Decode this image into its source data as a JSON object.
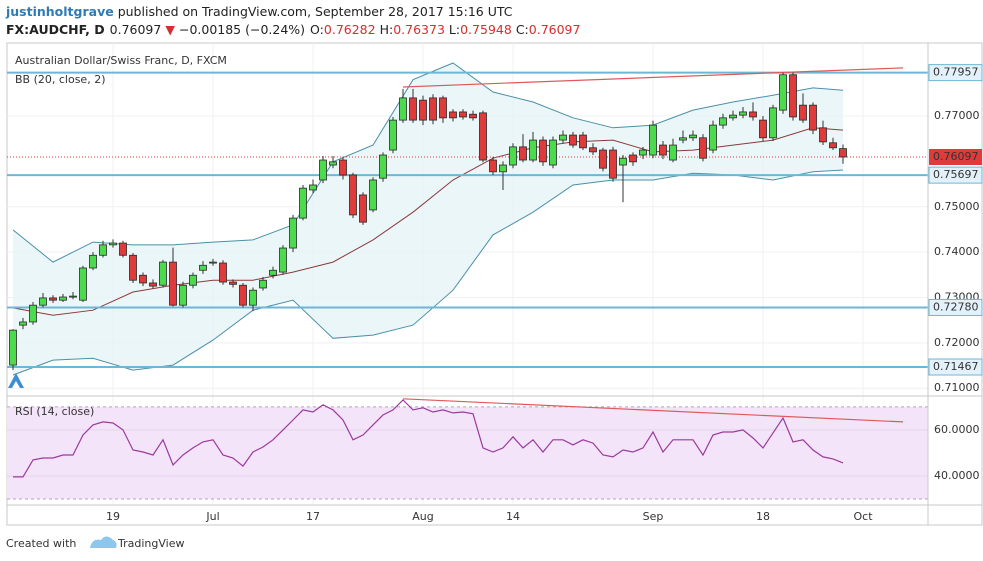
{
  "header": {
    "author": "justinholtgrave",
    "published": "published on TradingView.com, September 28, 2017 15:16 UTC",
    "symbol": "FX:AUDCHF, D",
    "last": "0.76097",
    "arrow": "▼",
    "change": "−0.00185 (−0.24%)",
    "ohlc": [
      {
        "key": "O:",
        "value": "0.76282"
      },
      {
        "key": "H:",
        "value": "0.76373"
      },
      {
        "key": "L:",
        "value": "0.75948"
      },
      {
        "key": "C:",
        "value": "0.76097"
      }
    ]
  },
  "footer": {
    "created": "Created with",
    "brand": "TradingView"
  },
  "chart_data": [
    {
      "type": "candlestick",
      "title": "Australian Dollar/Swiss Franc, D, FXCM",
      "up_color": "#4cdb4c",
      "down_color": "#e03b3b",
      "wick_color": "#333333",
      "xlim": [
        -0.6,
        91.5
      ],
      "xticks": [
        {
          "value": 10,
          "label": "19"
        },
        {
          "value": 20,
          "label": "Jul"
        },
        {
          "value": 30,
          "label": "17"
        },
        {
          "value": 41,
          "label": "Aug"
        },
        {
          "value": 50,
          "label": "14"
        },
        {
          "value": 64,
          "label": "Sep"
        },
        {
          "value": 75,
          "label": "18"
        },
        {
          "value": 85,
          "label": "Oct"
        }
      ],
      "ylim": [
        0.7085,
        0.7861
      ],
      "yticks": [
        {
          "value": 0.71,
          "label": "0.71000"
        },
        {
          "value": 0.72,
          "label": "0.72000"
        },
        {
          "value": 0.73,
          "label": "0.73000"
        },
        {
          "value": 0.74,
          "label": "0.74000"
        },
        {
          "value": 0.75,
          "label": "0.75000"
        },
        {
          "value": 0.77,
          "label": "0.77000"
        }
      ],
      "grid": true,
      "open": [
        0.7151,
        0.7239,
        0.7246,
        0.7283,
        0.7299,
        0.7294,
        0.7301,
        0.7294,
        0.7365,
        0.7393,
        0.7416,
        0.742,
        0.7393,
        0.7349,
        0.7332,
        0.7327,
        0.7378,
        0.7283,
        0.7327,
        0.736,
        0.7376,
        0.7376,
        0.7334,
        0.7327,
        0.7283,
        0.7321,
        0.7349,
        0.7356,
        0.7409,
        0.7475,
        0.7537,
        0.7559,
        0.7592,
        0.7603,
        0.757,
        0.7526,
        0.7493,
        0.7563,
        0.7625,
        0.7691,
        0.774,
        0.7735,
        0.774,
        0.774,
        0.7709,
        0.7709,
        0.7704,
        0.7707,
        0.7603,
        0.7577,
        0.7592,
        0.7632,
        0.7603,
        0.7647,
        0.7592,
        0.7647,
        0.7658,
        0.7658,
        0.763,
        0.7625,
        0.7625,
        0.7592,
        0.7614,
        0.7614,
        0.7614,
        0.7636,
        0.7603,
        0.7647,
        0.7652,
        0.7652,
        0.7625,
        0.768,
        0.7696,
        0.7702,
        0.7709,
        0.7691,
        0.7652,
        0.7713,
        0.7791,
        0.7724,
        0.7724,
        0.7674,
        0.7641,
        0.76282
      ],
      "high": [
        0.723,
        0.7255,
        0.729,
        0.731,
        0.7305,
        0.7308,
        0.7312,
        0.737,
        0.74,
        0.7425,
        0.7428,
        0.7425,
        0.7398,
        0.7355,
        0.734,
        0.7383,
        0.741,
        0.7335,
        0.7355,
        0.738,
        0.7385,
        0.7382,
        0.734,
        0.7332,
        0.7322,
        0.7345,
        0.7368,
        0.7415,
        0.7482,
        0.7548,
        0.756,
        0.7612,
        0.7612,
        0.761,
        0.7575,
        0.7532,
        0.7565,
        0.762,
        0.7698,
        0.776,
        0.776,
        0.7745,
        0.7748,
        0.7745,
        0.7715,
        0.7715,
        0.7712,
        0.7712,
        0.761,
        0.76,
        0.764,
        0.766,
        0.7665,
        0.7655,
        0.7655,
        0.7668,
        0.7665,
        0.7665,
        0.764,
        0.763,
        0.7632,
        0.7614,
        0.762,
        0.7632,
        0.769,
        0.7645,
        0.765,
        0.7668,
        0.7668,
        0.766,
        0.769,
        0.7705,
        0.7712,
        0.772,
        0.773,
        0.77,
        0.7725,
        0.7796,
        0.7796,
        0.775,
        0.773,
        0.769,
        0.7652,
        0.76373
      ],
      "low": [
        0.714,
        0.723,
        0.724,
        0.7278,
        0.7288,
        0.729,
        0.7296,
        0.729,
        0.736,
        0.7388,
        0.741,
        0.7388,
        0.7332,
        0.7325,
        0.732,
        0.7322,
        0.728,
        0.7278,
        0.732,
        0.7352,
        0.737,
        0.7328,
        0.7322,
        0.7278,
        0.727,
        0.7315,
        0.7342,
        0.735,
        0.74,
        0.747,
        0.753,
        0.7552,
        0.7585,
        0.756,
        0.7475,
        0.746,
        0.7488,
        0.7555,
        0.7618,
        0.7685,
        0.7685,
        0.768,
        0.7682,
        0.7685,
        0.7688,
        0.7692,
        0.769,
        0.7598,
        0.757,
        0.7537,
        0.7585,
        0.7598,
        0.7598,
        0.759,
        0.7585,
        0.764,
        0.763,
        0.7625,
        0.7614,
        0.7578,
        0.7555,
        0.751,
        0.759,
        0.7605,
        0.7607,
        0.7605,
        0.7598,
        0.764,
        0.7645,
        0.76,
        0.7618,
        0.7672,
        0.769,
        0.7695,
        0.769,
        0.7645,
        0.7645,
        0.7705,
        0.769,
        0.7685,
        0.766,
        0.7636,
        0.7625,
        0.75948
      ],
      "close": [
        0.7228,
        0.7246,
        0.7283,
        0.7299,
        0.7294,
        0.7301,
        0.7303,
        0.7365,
        0.7393,
        0.7416,
        0.742,
        0.7393,
        0.7338,
        0.7332,
        0.7325,
        0.7378,
        0.7283,
        0.7327,
        0.7349,
        0.7371,
        0.7378,
        0.7334,
        0.7329,
        0.7283,
        0.7316,
        0.7338,
        0.736,
        0.7409,
        0.7475,
        0.7541,
        0.7548,
        0.7603,
        0.7599,
        0.757,
        0.7482,
        0.7466,
        0.7559,
        0.7614,
        0.7691,
        0.774,
        0.7691,
        0.7691,
        0.7691,
        0.7696,
        0.7696,
        0.7698,
        0.7696,
        0.7603,
        0.7577,
        0.7592,
        0.7632,
        0.7603,
        0.7647,
        0.7599,
        0.7647,
        0.7658,
        0.7636,
        0.763,
        0.7621,
        0.7585,
        0.7563,
        0.7607,
        0.7599,
        0.7625,
        0.768,
        0.7614,
        0.7636,
        0.7652,
        0.7658,
        0.7607,
        0.768,
        0.7696,
        0.7702,
        0.7709,
        0.7698,
        0.7652,
        0.7718,
        0.7791,
        0.7698,
        0.7691,
        0.7669,
        0.7643,
        0.763,
        0.76097
      ],
      "bands": {
        "name": "BB (20, close, 2)",
        "color": "#4a90a8",
        "mid_color": "#8b3a3a",
        "x": [
          0,
          4,
          8,
          12,
          16,
          20,
          24,
          28,
          32,
          36,
          40,
          44,
          48,
          52,
          56,
          60,
          64,
          68,
          72,
          76,
          80,
          83
        ],
        "upper": [
          0.7449,
          0.7378,
          0.7422,
          0.7416,
          0.7416,
          0.7422,
          0.7427,
          0.746,
          0.7599,
          0.7636,
          0.778,
          0.7817,
          0.7753,
          0.7731,
          0.7696,
          0.7674,
          0.768,
          0.7713,
          0.7731,
          0.7746,
          0.7762,
          0.7757
        ],
        "middle": [
          0.7277,
          0.7261,
          0.7272,
          0.7312,
          0.7327,
          0.7338,
          0.7338,
          0.7356,
          0.7378,
          0.7427,
          0.7488,
          0.7559,
          0.7607,
          0.763,
          0.7643,
          0.7647,
          0.7621,
          0.7625,
          0.7636,
          0.7647,
          0.7674,
          0.7669
        ],
        "lower": [
          0.7129,
          0.7162,
          0.7166,
          0.714,
          0.7151,
          0.7206,
          0.7272,
          0.7294,
          0.721,
          0.7217,
          0.7239,
          0.7316,
          0.7438,
          0.7488,
          0.7548,
          0.7559,
          0.7559,
          0.7574,
          0.757,
          0.7559,
          0.7577,
          0.7581
        ]
      },
      "levels": {
        "color": "#6cb7d8",
        "values": [
          {
            "value": 0.77957,
            "label": "0.77957"
          },
          {
            "value": 0.75697,
            "label": "0.75697"
          },
          {
            "value": 0.7278,
            "label": "0.72780"
          },
          {
            "value": 0.71467,
            "label": "0.71467"
          }
        ]
      },
      "last_price": {
        "value": 0.76097,
        "label": "0.76097",
        "color": "#e03b3b"
      },
      "trendline": {
        "color": "#e05a5a",
        "x": [
          39,
          89
        ],
        "values": [
          0.7764,
          0.7806
        ]
      }
    },
    {
      "type": "line",
      "title": "RSI (14, close)",
      "color": "#9c3a9c",
      "xlim": [
        -0.6,
        91.5
      ],
      "ylim": [
        27.4,
        74.3
      ],
      "yticks": [
        {
          "value": 60,
          "label": "60.0000"
        },
        {
          "value": 40,
          "label": "40.0000"
        }
      ],
      "bands": [
        70,
        30
      ],
      "band_color": "#f3e4fa",
      "values": [
        39.6,
        39.6,
        47.0,
        47.8,
        47.8,
        49.1,
        49.1,
        57.8,
        62.2,
        63.5,
        63.0,
        60.0,
        51.3,
        50.4,
        49.1,
        55.7,
        44.8,
        49.1,
        52.2,
        54.8,
        55.7,
        49.1,
        47.8,
        44.3,
        50.4,
        52.6,
        55.7,
        60.0,
        64.3,
        68.7,
        67.8,
        70.9,
        68.7,
        64.3,
        55.7,
        57.8,
        62.2,
        66.5,
        68.7,
        73.0,
        68.7,
        69.6,
        67.8,
        68.7,
        67.4,
        67.8,
        67.0,
        52.2,
        50.4,
        52.2,
        57.0,
        52.2,
        55.7,
        50.4,
        55.7,
        55.7,
        53.5,
        55.7,
        54.3,
        49.1,
        48.3,
        51.3,
        50.4,
        52.2,
        59.1,
        50.4,
        55.7,
        55.7,
        55.7,
        49.1,
        57.8,
        59.1,
        59.1,
        60.0,
        56.5,
        52.2,
        58.7,
        65.2,
        54.8,
        55.7,
        51.3,
        48.3,
        47.4,
        45.7
      ],
      "trendline": {
        "color": "#e05a5a",
        "x": [
          39,
          89
        ],
        "values": [
          73.5,
          63.5
        ]
      }
    }
  ]
}
